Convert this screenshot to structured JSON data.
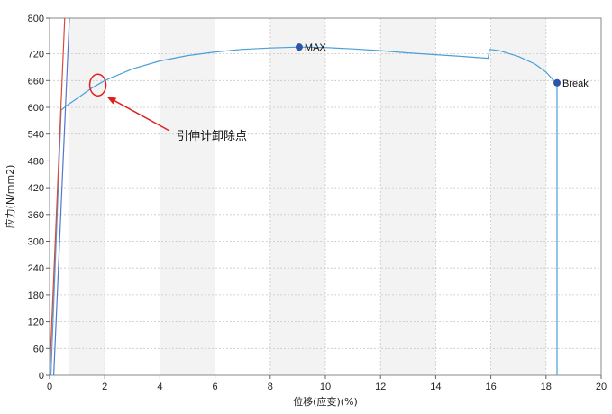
{
  "chart_data": {
    "type": "line",
    "title": "",
    "xlabel": "位移(应变)(%)",
    "ylabel": "应力(N/mm2)",
    "xlim": [
      0,
      20
    ],
    "ylim": [
      0,
      800
    ],
    "xticks": [
      0,
      2,
      4,
      6,
      8,
      10,
      12,
      14,
      16,
      18,
      20
    ],
    "yticks": [
      0,
      60,
      120,
      180,
      240,
      300,
      360,
      420,
      480,
      540,
      600,
      660,
      720,
      800
    ],
    "grid": true,
    "shaded_bands_x": [
      [
        0.7,
        2
      ],
      [
        4,
        6
      ],
      [
        8,
        10
      ],
      [
        12,
        14
      ],
      [
        16,
        18
      ]
    ],
    "series": [
      {
        "color": "#4a9fd8",
        "x": [
          0.05,
          0.42,
          0.6,
          1.0,
          1.5,
          2.0,
          3.0,
          4.0,
          5.0,
          6.0,
          7.0,
          8.0,
          9.05,
          10.0,
          11.0,
          12.0,
          13.0,
          14.0,
          15.0,
          15.9,
          15.95,
          16.3,
          17.0,
          17.6,
          18.0,
          18.25,
          18.4,
          18.4
        ],
        "y": [
          0,
          594,
          603,
          620,
          642,
          660,
          686,
          704,
          716,
          724,
          730,
          733,
          735,
          734,
          731,
          727,
          722,
          718,
          714,
          710,
          730,
          727,
          714,
          697,
          679,
          662,
          655,
          0
        ]
      },
      {
        "color": "#d94a3a",
        "x": [
          0.0,
          0.55
        ],
        "y": [
          0,
          800
        ]
      },
      {
        "color": "#5577cc",
        "x": [
          0.15,
          0.72
        ],
        "y": [
          0,
          800
        ]
      }
    ],
    "points": [
      {
        "label": "MAX",
        "x": 9.05,
        "y": 735,
        "color": "#2a55a8"
      },
      {
        "label": "Break",
        "x": 18.4,
        "y": 655,
        "color": "#2a55a8"
      }
    ],
    "annotation": {
      "text": "引伸计卸除点",
      "x": 1.75,
      "y": 650,
      "color": "#e02020"
    }
  }
}
